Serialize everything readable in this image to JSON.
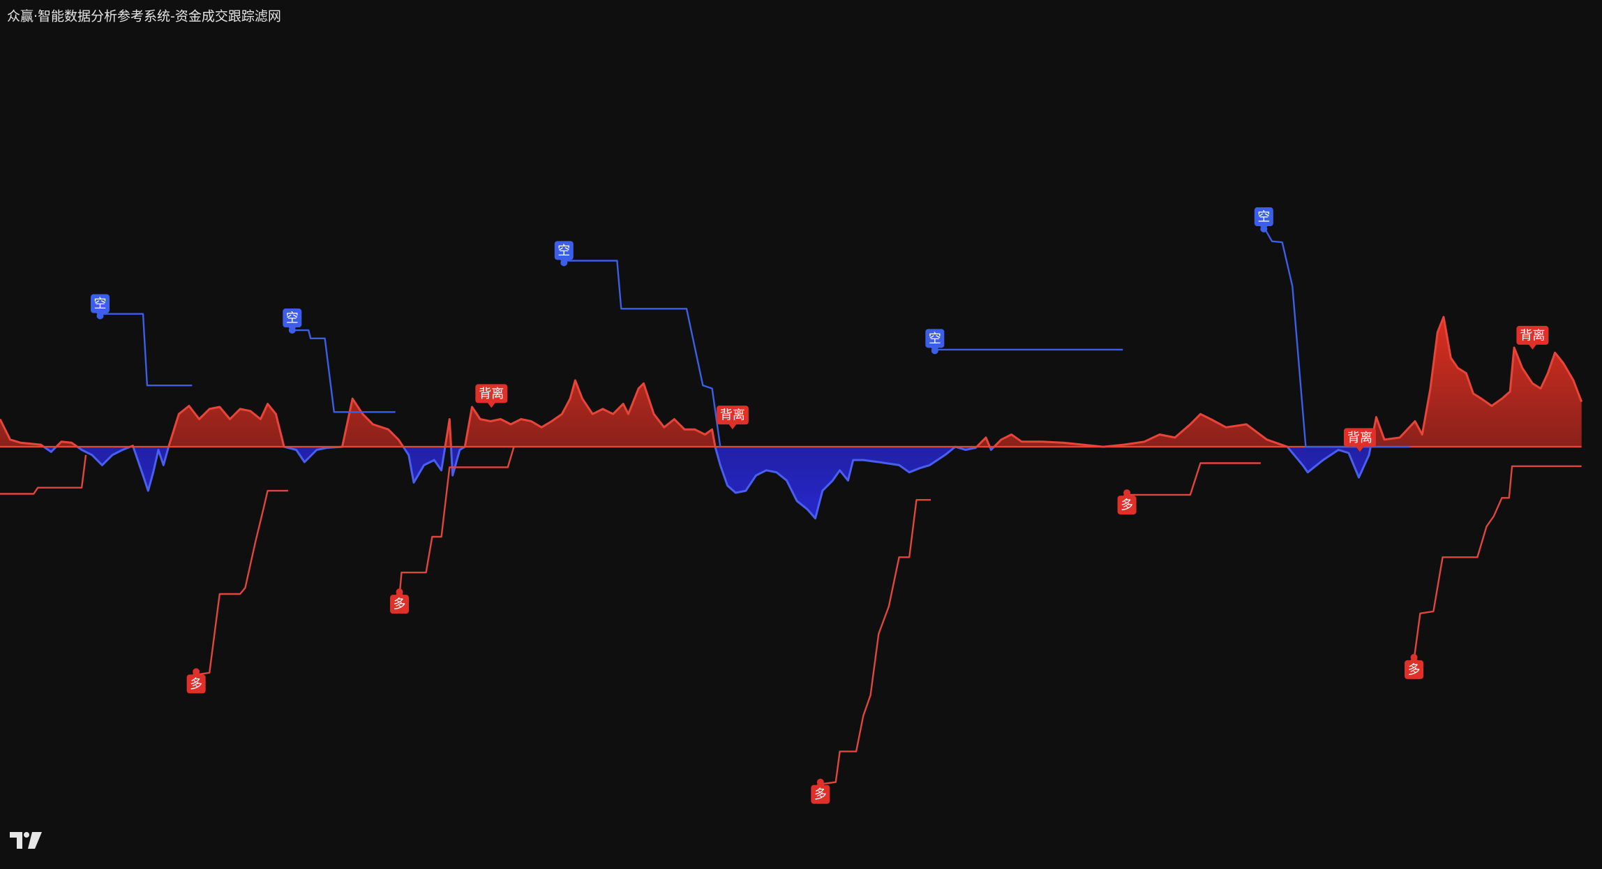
{
  "chart_data": {
    "type": "line",
    "title": "众赢·智能数据分析参考系统-资金成交跟踪滤网",
    "xlim": [
      0,
      1568
    ],
    "ylim": [
      -413,
      437
    ],
    "zero_line": 0,
    "zero_line_color": "#e0463c",
    "series": [
      {
        "color": "#e8453a",
        "negative_color": "#4a5ef0",
        "fill": true,
        "x": [
          0,
          10,
          20,
          40,
          50,
          60,
          70,
          80,
          90,
          100,
          110,
          120,
          130,
          140,
          145,
          150,
          155,
          160,
          165,
          175,
          185,
          195,
          205,
          215,
          225,
          235,
          245,
          255,
          262,
          270,
          278,
          290,
          298,
          310,
          320,
          335,
          345,
          355,
          365,
          380,
          390,
          400,
          405,
          415,
          425,
          432,
          440,
          443,
          450,
          455,
          462,
          470,
          480,
          490,
          500,
          510,
          520,
          530,
          540,
          550,
          558,
          563,
          570,
          580,
          590,
          600,
          610,
          615,
          625,
          630,
          640,
          650,
          660,
          670,
          680,
          690,
          697,
          700,
          705,
          712,
          720,
          730,
          740,
          750,
          760,
          770,
          780,
          790,
          798,
          805,
          815,
          822,
          830,
          835,
          845,
          860,
          880,
          890,
          900,
          910,
          925,
          935,
          945,
          955,
          965,
          970,
          980,
          990,
          1000,
          1020,
          1040,
          1060,
          1080,
          1100,
          1120,
          1135,
          1150,
          1165,
          1175,
          1185,
          1200,
          1220,
          1240,
          1260,
          1275,
          1280,
          1295,
          1310,
          1320,
          1330,
          1340,
          1347,
          1355,
          1370,
          1385,
          1392,
          1400,
          1407,
          1413,
          1420,
          1427,
          1435,
          1442,
          1450,
          1460,
          1470,
          1478,
          1482,
          1490,
          1500,
          1508,
          1515,
          1522,
          1530,
          1540,
          1548
        ],
        "values": [
          27,
          7,
          4,
          2,
          -5,
          5,
          4,
          -3,
          -8,
          -18,
          -8,
          -3,
          1,
          -28,
          -43,
          -25,
          -3,
          -18,
          0,
          32,
          40,
          27,
          37,
          39,
          27,
          37,
          35,
          27,
          42,
          32,
          0,
          -3,
          -15,
          -3,
          -1,
          0,
          47,
          32,
          22,
          17,
          7,
          -8,
          -35,
          -18,
          -13,
          -23,
          27,
          -28,
          -3,
          0,
          39,
          27,
          25,
          27,
          22,
          27,
          25,
          19,
          25,
          32,
          47,
          65,
          47,
          32,
          37,
          32,
          42,
          32,
          57,
          62,
          32,
          19,
          27,
          17,
          17,
          12,
          17,
          0,
          -18,
          -38,
          -45,
          -43,
          -28,
          -23,
          -25,
          -33,
          -53,
          -61,
          -70,
          -43,
          -33,
          -23,
          -33,
          -13,
          -13,
          -15,
          -18,
          -25,
          -21,
          -18,
          -8,
          0,
          -3,
          -1,
          9,
          -3,
          7,
          12,
          5,
          5,
          4,
          2,
          0,
          2,
          5,
          12,
          9,
          22,
          32,
          27,
          19,
          22,
          7,
          0,
          -18,
          -25,
          -13,
          -3,
          -6,
          -30,
          -8,
          29,
          7,
          9,
          25,
          12,
          57,
          112,
          127,
          87,
          77,
          72,
          52,
          47,
          40,
          47,
          54,
          97,
          77,
          62,
          57,
          72,
          92,
          82,
          65,
          44
        ]
      },
      {
        "color": "#3d5ee8",
        "x": [
          98,
          140,
          144,
          188
        ],
        "values": [
          130,
          130,
          60,
          60
        ]
      },
      {
        "color": "#3d5ee8",
        "x": [
          286,
          302,
          304,
          318,
          327,
          387
        ],
        "values": [
          114,
          114,
          106,
          106,
          34,
          34
        ]
      },
      {
        "color": "#3d5ee8",
        "x": [
          552,
          604,
          608,
          672,
          688,
          697,
          705
        ],
        "values": [
          182,
          182,
          135,
          135,
          60,
          57,
          0
        ]
      },
      {
        "color": "#3d5ee8",
        "x": [
          915,
          1099
        ],
        "values": [
          95,
          95
        ]
      },
      {
        "color": "#3d5ee8",
        "x": [
          1237,
          1245,
          1255,
          1265,
          1278,
          1380
        ],
        "values": [
          215,
          201,
          200,
          157,
          0,
          0
        ]
      },
      {
        "color": "#e0463c",
        "x": [
          0,
          33,
          37,
          80,
          84
        ],
        "values": [
          -46,
          -46,
          -40,
          -40,
          -8
        ]
      },
      {
        "color": "#e0463c",
        "x": [
          192,
          205,
          215,
          235,
          240,
          250,
          258,
          262,
          282
        ],
        "values": [
          -223,
          -221,
          -144,
          -144,
          -138,
          -93,
          -60,
          -43,
          -43
        ]
      },
      {
        "color": "#e0463c",
        "x": [
          391,
          393,
          417,
          423,
          432,
          440,
          497,
          503
        ],
        "values": [
          -146,
          -123,
          -123,
          -88,
          -88,
          -20,
          -20,
          0
        ]
      },
      {
        "color": "#e0463c",
        "x": [
          803,
          818,
          822,
          838,
          845,
          852,
          860,
          870,
          880,
          890,
          897,
          911
        ],
        "values": [
          -330,
          -328,
          -298,
          -298,
          -263,
          -243,
          -183,
          -156,
          -108,
          -108,
          -52,
          -52
        ]
      },
      {
        "color": "#e0463c",
        "x": [
          1103,
          1165,
          1175,
          1234
        ],
        "values": [
          -47,
          -47,
          -16,
          -16
        ]
      },
      {
        "color": "#e0463c",
        "x": [
          1384,
          1390,
          1403,
          1412,
          1446,
          1455,
          1462,
          1470,
          1477,
          1480,
          1548
        ],
        "values": [
          -208,
          -163,
          -161,
          -108,
          -108,
          -78,
          -68,
          -50,
          -50,
          -19,
          -19
        ]
      }
    ],
    "annotations": [
      {
        "text": "空",
        "x": 98,
        "y": 140,
        "color": "#3d5ee8",
        "pointer": "down"
      },
      {
        "text": "空",
        "x": 286,
        "y": 126,
        "color": "#3d5ee8",
        "pointer": "down"
      },
      {
        "text": "空",
        "x": 552,
        "y": 192,
        "color": "#3d5ee8",
        "pointer": "down"
      },
      {
        "text": "空",
        "x": 915,
        "y": 106,
        "color": "#3d5ee8",
        "pointer": "down"
      },
      {
        "text": "空",
        "x": 1237,
        "y": 225,
        "color": "#3d5ee8",
        "pointer": "down"
      },
      {
        "text": "多",
        "x": 192,
        "y": -232,
        "color": "#e0302a",
        "pointer": "up"
      },
      {
        "text": "多",
        "x": 391,
        "y": -154,
        "color": "#e0302a",
        "pointer": "up"
      },
      {
        "text": "多",
        "x": 803,
        "y": -340,
        "color": "#e0302a",
        "pointer": "up"
      },
      {
        "text": "多",
        "x": 1103,
        "y": -57,
        "color": "#e0302a",
        "pointer": "up"
      },
      {
        "text": "多",
        "x": 1384,
        "y": -218,
        "color": "#e0302a",
        "pointer": "up"
      },
      {
        "text": "背离",
        "x": 481,
        "y": 52,
        "color": "#e0302a",
        "pointer": "down"
      },
      {
        "text": "背离",
        "x": 717,
        "y": 31,
        "color": "#e0302a",
        "pointer": "down"
      },
      {
        "text": "背离",
        "x": 1331,
        "y": 9,
        "color": "#e0302a",
        "pointer": "down"
      },
      {
        "text": "背离",
        "x": 1500,
        "y": 109,
        "color": "#e0302a",
        "pointer": "down"
      }
    ]
  }
}
